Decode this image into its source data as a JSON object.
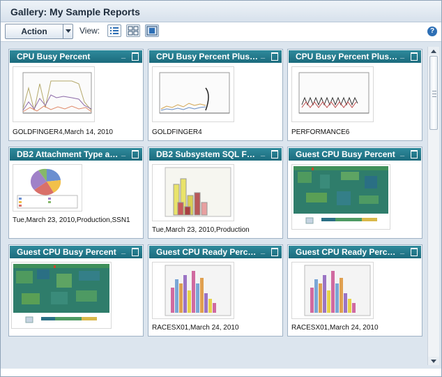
{
  "window": {
    "title": "Gallery: My Sample Reports"
  },
  "toolbar": {
    "action_label": "Action",
    "view_label": "View:",
    "view_buttons": [
      "list-view-icon",
      "tile-view-icon",
      "preview-view-icon"
    ],
    "help_label": "?"
  },
  "cards": [
    {
      "title": "CPU Busy Percent",
      "caption": "GOLDFINGER4,March 14, 2010",
      "thumb": "line-chart"
    },
    {
      "title": "CPU Busy Percent Plus…",
      "caption": "GOLDFINGER4",
      "thumb": "line-chart-sparse"
    },
    {
      "title": "CPU Busy Percent Plus…",
      "caption": "PERFORMANCE6",
      "thumb": "line-chart-wave"
    },
    {
      "title": "DB2 Attachment Type a…",
      "caption": "Tue,March 23, 2010,Production,SSN1",
      "thumb": "pie-chart"
    },
    {
      "title": "DB2 Subsystem SQL Fu…",
      "caption": "Tue,March 23, 2010,Production",
      "thumb": "3d-bar-chart"
    },
    {
      "title": "Guest CPU Busy Percent",
      "caption": "",
      "thumb": "heatmap"
    },
    {
      "title": "Guest CPU Busy Percent",
      "caption": "",
      "thumb": "heatmap"
    },
    {
      "title": "Guest CPU Ready Perc…",
      "caption": "RACESX01,March 24, 2010",
      "thumb": "3d-bar-chart-multi"
    },
    {
      "title": "Guest CPU Ready Perc…",
      "caption": "RACESX01,March 24, 2010",
      "thumb": "3d-bar-chart-multi"
    }
  ],
  "colors": {
    "header": "#1b6b7d",
    "background": "#dce5ee"
  }
}
